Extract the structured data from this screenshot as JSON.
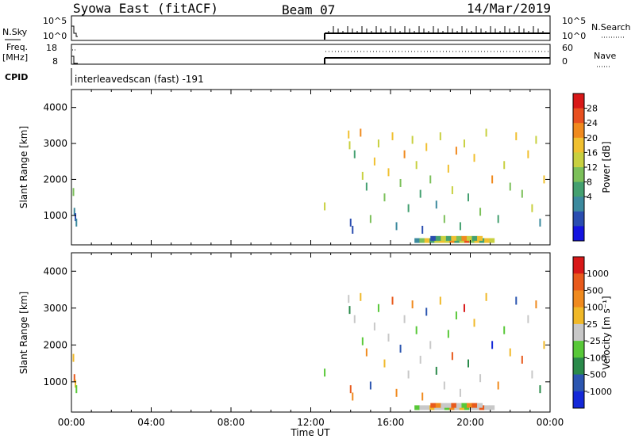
{
  "header": {
    "station": "Syowa East (fitACF)",
    "beam": "Beam 07",
    "date": "14/Mar/2019"
  },
  "status_panels": {
    "nsky_label": "N.Sky",
    "nsky_ticks": [
      "10^5",
      "10^0"
    ],
    "nsearch_label": "N.Search",
    "nsearch_ticks": [
      "10^5",
      "10^0"
    ],
    "freq_label": "Freq.",
    "freq_unit": "[MHz]",
    "freq_ticks": [
      "18",
      "8"
    ],
    "nave_label": "Nave",
    "nave_ticks": [
      "60",
      "0"
    ],
    "cpid_label": "CPID",
    "cpid_value": "interleavedscan (fast) -191"
  },
  "chart_data": [
    {
      "type": "heatmap",
      "name_hint": "power",
      "ylabel": "Slant Range [km]",
      "xlabel": "",
      "yticks": [
        "4000",
        "3000",
        "2000",
        "1000"
      ],
      "ylim": [
        180,
        4500
      ],
      "xlim": [
        0,
        24
      ],
      "colorbar": {
        "label": "Power [dB]",
        "ticks": [
          "28",
          "24",
          "20",
          "16",
          "12",
          "8",
          "4"
        ],
        "colors": [
          "#1414e0",
          "#2a4db0",
          "#3c8a9e",
          "#44a070",
          "#7cc05a",
          "#c8d040",
          "#f0c030",
          "#f08a1e",
          "#e85020",
          "#d81818"
        ],
        "range": [
          0,
          32
        ]
      },
      "scatter_data": [
        {
          "t": 0.1,
          "r": 1650,
          "v": 14
        },
        {
          "t": 0.15,
          "r": 1100,
          "v": 9
        },
        {
          "t": 0.2,
          "r": 950,
          "v": 5
        },
        {
          "t": 0.25,
          "r": 800,
          "v": 7
        },
        {
          "t": 12.7,
          "r": 1250,
          "v": 16
        },
        {
          "t": 13.9,
          "r": 3250,
          "v": 22
        },
        {
          "t": 13.95,
          "r": 2950,
          "v": 18
        },
        {
          "t": 14.0,
          "r": 800,
          "v": 6
        },
        {
          "t": 14.1,
          "r": 600,
          "v": 4
        },
        {
          "t": 14.2,
          "r": 2700,
          "v": 12
        },
        {
          "t": 14.5,
          "r": 3300,
          "v": 24
        },
        {
          "t": 14.6,
          "r": 2100,
          "v": 16
        },
        {
          "t": 14.8,
          "r": 1800,
          "v": 10
        },
        {
          "t": 15.0,
          "r": 900,
          "v": 14
        },
        {
          "t": 15.2,
          "r": 2500,
          "v": 20
        },
        {
          "t": 15.4,
          "r": 3000,
          "v": 18
        },
        {
          "t": 15.7,
          "r": 1500,
          "v": 13
        },
        {
          "t": 15.9,
          "r": 2200,
          "v": 22
        },
        {
          "t": 16.1,
          "r": 3200,
          "v": 20
        },
        {
          "t": 16.3,
          "r": 700,
          "v": 8
        },
        {
          "t": 16.5,
          "r": 1900,
          "v": 15
        },
        {
          "t": 16.7,
          "r": 2700,
          "v": 24
        },
        {
          "t": 16.9,
          "r": 1200,
          "v": 11
        },
        {
          "t": 17.1,
          "r": 3100,
          "v": 19
        },
        {
          "t": 17.3,
          "r": 2400,
          "v": 17
        },
        {
          "t": 17.5,
          "r": 1600,
          "v": 12
        },
        {
          "t": 17.6,
          "r": 600,
          "v": 6
        },
        {
          "t": 17.8,
          "r": 2900,
          "v": 21
        },
        {
          "t": 18.0,
          "r": 2000,
          "v": 14
        },
        {
          "t": 18.3,
          "r": 1300,
          "v": 9
        },
        {
          "t": 18.5,
          "r": 3200,
          "v": 18
        },
        {
          "t": 18.7,
          "r": 900,
          "v": 13
        },
        {
          "t": 18.9,
          "r": 2300,
          "v": 20
        },
        {
          "t": 19.1,
          "r": 1700,
          "v": 16
        },
        {
          "t": 19.3,
          "r": 2800,
          "v": 23
        },
        {
          "t": 19.5,
          "r": 700,
          "v": 10
        },
        {
          "t": 19.7,
          "r": 3000,
          "v": 18
        },
        {
          "t": 19.9,
          "r": 1500,
          "v": 12
        },
        {
          "t": 20.2,
          "r": 2600,
          "v": 21
        },
        {
          "t": 20.5,
          "r": 1100,
          "v": 15
        },
        {
          "t": 20.8,
          "r": 3300,
          "v": 19
        },
        {
          "t": 21.1,
          "r": 2000,
          "v": 24
        },
        {
          "t": 21.4,
          "r": 900,
          "v": 11
        },
        {
          "t": 21.7,
          "r": 2400,
          "v": 17
        },
        {
          "t": 22.0,
          "r": 1800,
          "v": 14
        },
        {
          "t": 22.3,
          "r": 3200,
          "v": 20
        },
        {
          "t": 22.6,
          "r": 1600,
          "v": 13
        },
        {
          "t": 22.9,
          "r": 2700,
          "v": 22
        },
        {
          "t": 23.1,
          "r": 1200,
          "v": 16
        },
        {
          "t": 23.3,
          "r": 3100,
          "v": 18
        },
        {
          "t": 23.5,
          "r": 800,
          "v": 9
        },
        {
          "t": 23.7,
          "r": 2000,
          "v": 20
        }
      ],
      "band_data": [
        {
          "t0": 17.2,
          "t1": 21.2,
          "r": 300,
          "values": [
            8,
            14,
            20,
            12,
            18,
            22,
            16,
            24,
            10,
            18,
            26,
            14,
            20,
            12,
            22,
            18
          ]
        },
        {
          "t0": 18.0,
          "t1": 20.6,
          "r": 360,
          "values": [
            6,
            12,
            18,
            10,
            20,
            14,
            24,
            16,
            12,
            22
          ]
        }
      ]
    },
    {
      "type": "heatmap",
      "name_hint": "velocity",
      "ylabel": "Slant Range [km]",
      "xlabel": "Time UT",
      "xticks": [
        "00:00",
        "04:00",
        "08:00",
        "12:00",
        "16:00",
        "20:00",
        "00:00"
      ],
      "yticks": [
        "4000",
        "3000",
        "2000",
        "1000"
      ],
      "ylim": [
        180,
        4500
      ],
      "xlim": [
        0,
        24
      ],
      "colorbar": {
        "label": "Velocity [m s⁻¹]",
        "ticks": [
          "1000",
          "500",
          "100",
          "25",
          "-25",
          "-100",
          "-500",
          "-1000"
        ],
        "colors": [
          "#1428d8",
          "#2c56b0",
          "#2a8a4a",
          "#58c838",
          "#c8c8c8",
          "#f0b828",
          "#f08a1e",
          "#e85a1c",
          "#d81818"
        ],
        "range": [
          -1200,
          1200
        ]
      },
      "scatter_data": [
        {
          "t": 0.1,
          "r": 1650,
          "v": 300
        },
        {
          "t": 0.15,
          "r": 1100,
          "v": 700
        },
        {
          "t": 0.2,
          "r": 950,
          "v": 150
        },
        {
          "t": 0.25,
          "r": 800,
          "v": -300
        },
        {
          "t": 12.7,
          "r": 1250,
          "v": -150
        },
        {
          "t": 13.9,
          "r": 3250,
          "v": 80
        },
        {
          "t": 13.95,
          "r": 2950,
          "v": -600
        },
        {
          "t": 14.0,
          "r": 800,
          "v": 900
        },
        {
          "t": 14.1,
          "r": 600,
          "v": 400
        },
        {
          "t": 14.2,
          "r": 2700,
          "v": -50
        },
        {
          "t": 14.5,
          "r": 3300,
          "v": 200
        },
        {
          "t": 14.6,
          "r": 2100,
          "v": -200
        },
        {
          "t": 14.8,
          "r": 1800,
          "v": 600
        },
        {
          "t": 15.0,
          "r": 900,
          "v": -800
        },
        {
          "t": 15.2,
          "r": 2500,
          "v": 50
        },
        {
          "t": 15.4,
          "r": 3000,
          "v": -400
        },
        {
          "t": 15.7,
          "r": 1500,
          "v": 300
        },
        {
          "t": 15.9,
          "r": 2200,
          "v": -120
        },
        {
          "t": 16.1,
          "r": 3200,
          "v": 800
        },
        {
          "t": 16.3,
          "r": 700,
          "v": 500
        },
        {
          "t": 16.5,
          "r": 1900,
          "v": -700
        },
        {
          "t": 16.7,
          "r": 2700,
          "v": 120
        },
        {
          "t": 16.9,
          "r": 1200,
          "v": -60
        },
        {
          "t": 17.1,
          "r": 3100,
          "v": 450
        },
        {
          "t": 17.3,
          "r": 2400,
          "v": -350
        },
        {
          "t": 17.5,
          "r": 1600,
          "v": 90
        },
        {
          "t": 17.6,
          "r": 600,
          "v": 650
        },
        {
          "t": 17.8,
          "r": 2900,
          "v": -900
        },
        {
          "t": 18.0,
          "r": 2000,
          "v": 30
        },
        {
          "t": 18.3,
          "r": 1300,
          "v": -450
        },
        {
          "t": 18.5,
          "r": 3200,
          "v": 250
        },
        {
          "t": 18.7,
          "r": 900,
          "v": 120
        },
        {
          "t": 18.9,
          "r": 2300,
          "v": -150
        },
        {
          "t": 19.1,
          "r": 1700,
          "v": 700
        },
        {
          "t": 19.3,
          "r": 2800,
          "v": -250
        },
        {
          "t": 19.5,
          "r": 700,
          "v": 60
        },
        {
          "t": 19.7,
          "r": 3000,
          "v": 1000
        },
        {
          "t": 19.9,
          "r": 1500,
          "v": -600
        },
        {
          "t": 20.2,
          "r": 2600,
          "v": 150
        },
        {
          "t": 20.5,
          "r": 1100,
          "v": -80
        },
        {
          "t": 20.8,
          "r": 3300,
          "v": 350
        },
        {
          "t": 21.1,
          "r": 2000,
          "v": -1000
        },
        {
          "t": 21.4,
          "r": 900,
          "v": 500
        },
        {
          "t": 21.7,
          "r": 2400,
          "v": -300
        },
        {
          "t": 22.0,
          "r": 1800,
          "v": 200
        },
        {
          "t": 22.3,
          "r": 3200,
          "v": -700
        },
        {
          "t": 22.6,
          "r": 1600,
          "v": 800
        },
        {
          "t": 22.9,
          "r": 2700,
          "v": -120
        },
        {
          "t": 23.1,
          "r": 1200,
          "v": 40
        },
        {
          "t": 23.3,
          "r": 3100,
          "v": 600
        },
        {
          "t": 23.5,
          "r": 800,
          "v": -500
        },
        {
          "t": 23.7,
          "r": 2000,
          "v": 300
        }
      ],
      "band_data": [
        {
          "t0": 17.2,
          "t1": 21.2,
          "r": 300,
          "values": [
            -150,
            50,
            -80,
            200,
            -40,
            20,
            -300,
            600,
            -60,
            150,
            -200,
            40,
            -100,
            700,
            -50,
            90
          ]
        },
        {
          "t0": 18.0,
          "t1": 20.6,
          "r": 360,
          "values": [
            800,
            400,
            -60,
            120,
            700,
            30,
            -150,
            500,
            900,
            60
          ]
        }
      ]
    }
  ]
}
